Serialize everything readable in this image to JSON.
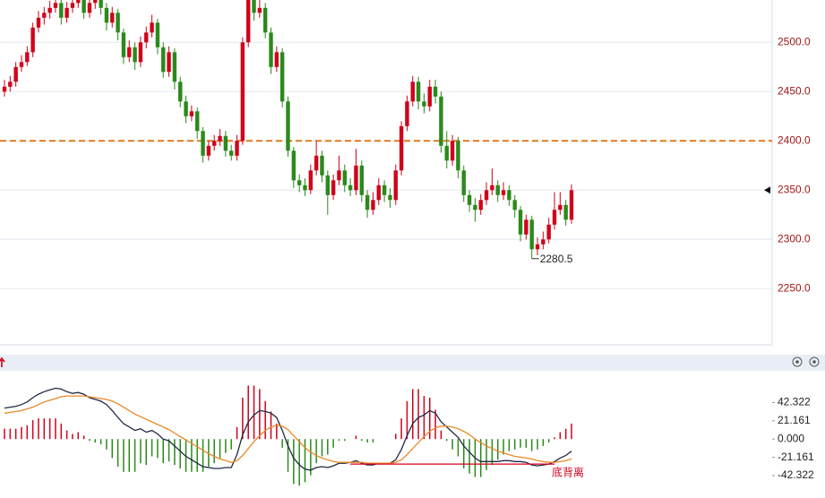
{
  "chart_data": [
    {
      "type": "candlestick",
      "open": [
        2450,
        2455,
        2460,
        2475,
        2480,
        2490,
        2515,
        2525,
        2530,
        2535,
        2540,
        2525,
        2535,
        2540,
        2545,
        2530,
        2540,
        2545,
        2535,
        2520,
        2530,
        2510,
        2485,
        2495,
        2480,
        2500,
        2510,
        2520,
        2495,
        2470,
        2490,
        2460,
        2440,
        2425,
        2430,
        2410,
        2385,
        2395,
        2400,
        2405,
        2390,
        2385,
        2400,
        2500,
        2545,
        2530,
        2535,
        2510,
        2475,
        2490,
        2440,
        2390,
        2360,
        2355,
        2350,
        2370,
        2385,
        2365,
        2345,
        2360,
        2370,
        2355,
        2350,
        2375,
        2345,
        2330,
        2340,
        2355,
        2345,
        2340,
        2370,
        2415,
        2440,
        2460,
        2440,
        2435,
        2455,
        2445,
        2395,
        2380,
        2400,
        2370,
        2345,
        2335,
        2330,
        2340,
        2350,
        2355,
        2345,
        2350,
        2340,
        2330,
        2305,
        2320,
        2290,
        2295,
        2300,
        2315,
        2330,
        2335,
        2320
      ],
      "high": [
        2462,
        2466,
        2480,
        2487,
        2496,
        2520,
        2532,
        2536,
        2542,
        2548,
        2545,
        2541,
        2548,
        2552,
        2550,
        2546,
        2552,
        2550,
        2540,
        2536,
        2534,
        2514,
        2502,
        2500,
        2506,
        2516,
        2528,
        2524,
        2500,
        2496,
        2494,
        2465,
        2446,
        2436,
        2434,
        2414,
        2400,
        2406,
        2412,
        2410,
        2396,
        2406,
        2505,
        2552,
        2550,
        2545,
        2540,
        2515,
        2496,
        2494,
        2445,
        2394,
        2366,
        2362,
        2376,
        2400,
        2390,
        2370,
        2366,
        2385,
        2376,
        2362,
        2392,
        2380,
        2350,
        2348,
        2362,
        2360,
        2352,
        2376,
        2420,
        2446,
        2466,
        2465,
        2448,
        2462,
        2462,
        2450,
        2410,
        2406,
        2404,
        2375,
        2350,
        2342,
        2346,
        2358,
        2372,
        2360,
        2358,
        2355,
        2345,
        2334,
        2325,
        2324,
        2302,
        2308,
        2322,
        2348,
        2348,
        2340,
        2356
      ],
      "low": [
        2445,
        2450,
        2455,
        2470,
        2476,
        2485,
        2510,
        2518,
        2524,
        2530,
        2518,
        2520,
        2530,
        2535,
        2524,
        2525,
        2534,
        2528,
        2512,
        2515,
        2502,
        2478,
        2480,
        2472,
        2475,
        2494,
        2505,
        2488,
        2464,
        2465,
        2452,
        2434,
        2418,
        2420,
        2402,
        2378,
        2380,
        2390,
        2395,
        2384,
        2380,
        2380,
        2396,
        2495,
        2522,
        2525,
        2504,
        2468,
        2470,
        2434,
        2384,
        2352,
        2348,
        2344,
        2346,
        2365,
        2358,
        2325,
        2340,
        2355,
        2348,
        2344,
        2345,
        2338,
        2322,
        2325,
        2335,
        2338,
        2332,
        2335,
        2365,
        2410,
        2435,
        2432,
        2428,
        2430,
        2438,
        2388,
        2372,
        2375,
        2362,
        2338,
        2328,
        2318,
        2325,
        2335,
        2345,
        2338,
        2340,
        2334,
        2322,
        2298,
        2300,
        2280.5,
        2284,
        2290,
        2296,
        2310,
        2325,
        2314,
        2316
      ],
      "close": [
        2455,
        2460,
        2475,
        2480,
        2490,
        2515,
        2525,
        2530,
        2535,
        2540,
        2525,
        2535,
        2540,
        2545,
        2530,
        2540,
        2545,
        2535,
        2520,
        2530,
        2510,
        2485,
        2495,
        2480,
        2500,
        2510,
        2520,
        2495,
        2470,
        2490,
        2460,
        2440,
        2425,
        2430,
        2410,
        2385,
        2395,
        2400,
        2405,
        2390,
        2385,
        2400,
        2500,
        2545,
        2530,
        2535,
        2510,
        2475,
        2490,
        2440,
        2390,
        2360,
        2355,
        2350,
        2370,
        2385,
        2365,
        2345,
        2360,
        2370,
        2355,
        2350,
        2375,
        2345,
        2330,
        2340,
        2355,
        2345,
        2340,
        2370,
        2415,
        2440,
        2460,
        2440,
        2435,
        2455,
        2445,
        2395,
        2380,
        2400,
        2370,
        2345,
        2335,
        2330,
        2340,
        2350,
        2355,
        2345,
        2350,
        2340,
        2330,
        2305,
        2320,
        2290,
        2295,
        2300,
        2315,
        2330,
        2335,
        2320,
        2350
      ],
      "up_color": "#d0021b",
      "down_color": "#2a8a1a",
      "ylim": [
        2193,
        2543
      ],
      "yticks": [
        {
          "value": 2250,
          "label": "2250.0"
        },
        {
          "value": 2300,
          "label": "2300.0"
        },
        {
          "value": 2350,
          "label": "2350.0"
        },
        {
          "value": 2400,
          "label": "2400.0"
        },
        {
          "value": 2450,
          "label": "2450.0"
        },
        {
          "value": 2500,
          "label": "2500.0"
        }
      ],
      "grid": true,
      "hline": 2400,
      "hline_color": "#e07b1f"
    },
    {
      "type": "macd",
      "series": [
        {
          "color": "#1f2a44",
          "values": [
            36,
            37,
            38,
            40,
            43,
            48,
            52,
            55,
            57,
            59,
            58,
            55,
            53,
            54,
            52,
            48,
            46,
            44,
            40,
            33,
            25,
            18,
            14,
            10,
            12,
            8,
            10,
            6,
            0,
            -2,
            -8,
            -14,
            -20,
            -24,
            -28,
            -32,
            -33,
            -34,
            -34,
            -33,
            -33,
            -18,
            5,
            20,
            28,
            33,
            32,
            30,
            25,
            10,
            -8,
            -22,
            -30,
            -35,
            -36,
            -33,
            -32,
            -33,
            -31,
            -28,
            -28,
            -27,
            -25,
            -28,
            -30,
            -30,
            -28,
            -28,
            -28,
            -24,
            -12,
            4,
            18,
            25,
            28,
            33,
            30,
            20,
            14,
            8,
            2,
            -8,
            -15,
            -22,
            -26,
            -26,
            -26,
            -26,
            -25,
            -25,
            -26,
            -26,
            -27,
            -30,
            -31,
            -30,
            -29,
            -26,
            -22,
            -19,
            -14
          ]
        },
        {
          "color": "#e8892a",
          "values": [
            30,
            31,
            32,
            33,
            35,
            37,
            40,
            43,
            45,
            47,
            49,
            50,
            50,
            50,
            50,
            49,
            48,
            47,
            46,
            44,
            41,
            37,
            33,
            29,
            26,
            23,
            20,
            17,
            14,
            11,
            7,
            3,
            -1,
            -5,
            -9,
            -13,
            -17,
            -20,
            -23,
            -25,
            -27,
            -25,
            -19,
            -11,
            -3,
            4,
            10,
            14,
            16,
            15,
            11,
            4,
            -3,
            -10,
            -15,
            -19,
            -22,
            -24,
            -26,
            -27,
            -27,
            -27,
            -27,
            -27,
            -28,
            -28,
            -28,
            -28,
            -28,
            -27,
            -24,
            -18,
            -11,
            -4,
            3,
            9,
            13,
            15,
            15,
            14,
            12,
            9,
            5,
            0,
            -4,
            -8,
            -11,
            -14,
            -16,
            -18,
            -20,
            -21,
            -22,
            -23,
            -25,
            -26,
            -27,
            -27,
            -26,
            -25,
            -23
          ]
        }
      ],
      "histogram": [
        12,
        12,
        12,
        14,
        16,
        22,
        24,
        24,
        24,
        24,
        18,
        10,
        6,
        8,
        4,
        -2,
        -4,
        -6,
        -12,
        -22,
        -32,
        -38,
        -38,
        -38,
        -28,
        -30,
        -20,
        -22,
        -28,
        -26,
        -30,
        -34,
        -38,
        -38,
        -38,
        -38,
        -32,
        -28,
        -22,
        -16,
        -12,
        14,
        48,
        62,
        62,
        58,
        44,
        32,
        18,
        -10,
        -38,
        -52,
        -54,
        -50,
        -42,
        -28,
        -20,
        -18,
        -10,
        -2,
        -2,
        0,
        4,
        -2,
        -4,
        -4,
        0,
        0,
        0,
        6,
        24,
        44,
        58,
        58,
        50,
        48,
        34,
        10,
        -2,
        -12,
        -20,
        -34,
        -40,
        -44,
        -44,
        -36,
        -30,
        -24,
        -18,
        -14,
        -12,
        -10,
        -10,
        -14,
        -12,
        -8,
        -4,
        2,
        8,
        12,
        18
      ],
      "up_color": "#d0021b",
      "down_color": "#2a8a1a",
      "ylim": [
        -60,
        75
      ],
      "yticks": [
        {
          "value": 42.322,
          "label": "42.322"
        },
        {
          "value": 21.161,
          "label": "21.161"
        },
        {
          "value": 0,
          "label": "0.000"
        },
        {
          "value": -21.161,
          "label": "-21.161"
        },
        {
          "value": -42.322,
          "label": "-42.322"
        }
      ],
      "divergence": {
        "label": "底背离",
        "start": 61,
        "end": 97,
        "value": -29,
        "color": "#d0021b"
      }
    }
  ]
}
